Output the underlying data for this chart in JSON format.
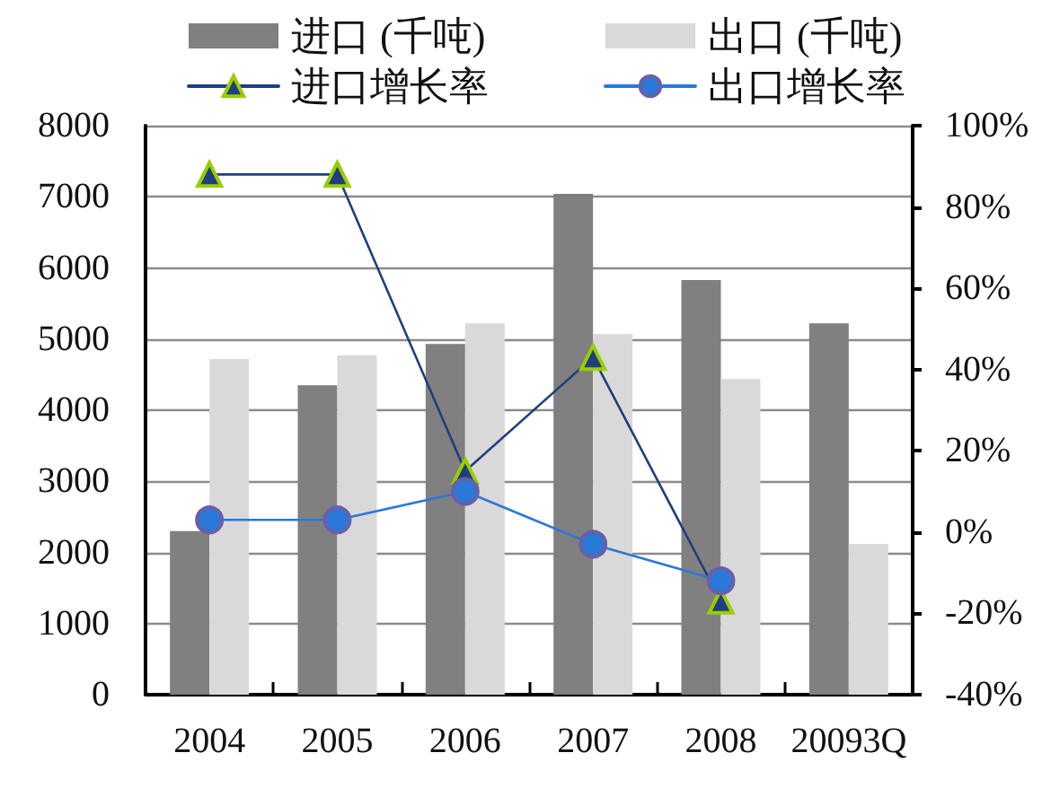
{
  "chart_data": {
    "type": "bar",
    "categories": [
      "2004",
      "2005",
      "2006",
      "2007",
      "2008",
      "20093Q"
    ],
    "series": [
      {
        "name": "进口 (千吨)",
        "color": "#808080",
        "values": [
          2300,
          4350,
          4930,
          7040,
          5830,
          5220
        ]
      },
      {
        "name": "出口 (千吨)",
        "color": "#d9d9d9",
        "values": [
          4720,
          4770,
          5220,
          5070,
          4440,
          2120
        ]
      },
      {
        "name": "进口增长率",
        "type": "line",
        "axis": "y2",
        "color": "#1f3f7f",
        "marker": "triangle",
        "values": [
          88,
          88,
          15,
          43,
          -17,
          null
        ]
      },
      {
        "name": "出口增长率",
        "type": "line",
        "axis": "y2",
        "color": "#2a78d8",
        "marker": "circle",
        "values": [
          3,
          3,
          10,
          -3,
          -12,
          null
        ]
      }
    ],
    "ylim": [
      0,
      8000
    ],
    "yticks": [
      0,
      1000,
      2000,
      3000,
      4000,
      5000,
      6000,
      7000,
      8000
    ],
    "y2lim": [
      -40,
      100
    ],
    "y2ticks": [
      {
        "value": -40,
        "label": "-40%"
      },
      {
        "value": -20,
        "label": "-20%"
      },
      {
        "value": 0,
        "label": "0%"
      },
      {
        "value": 20,
        "label": "20%"
      },
      {
        "value": 40,
        "label": "40%"
      },
      {
        "value": 60,
        "label": "60%"
      },
      {
        "value": 80,
        "label": "80%"
      },
      {
        "value": 100,
        "label": "100%"
      }
    ],
    "grid": "y",
    "legend": "top"
  }
}
